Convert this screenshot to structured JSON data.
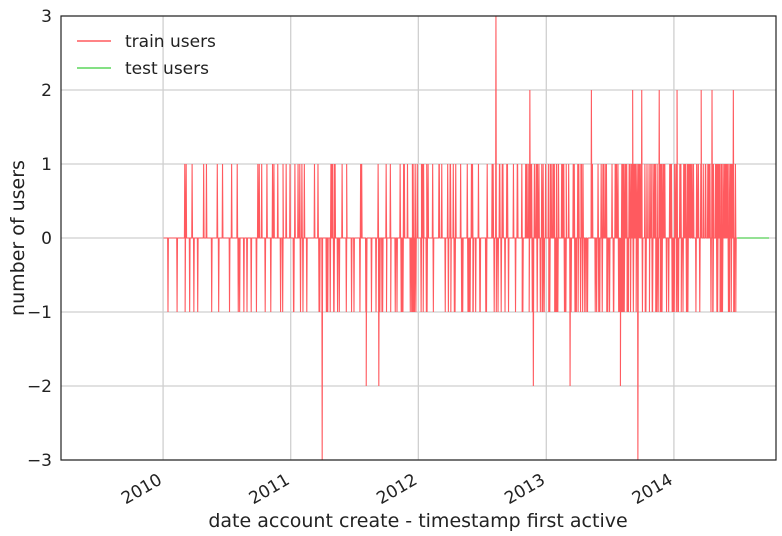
{
  "chart_data": {
    "type": "line",
    "xlabel": "date account create - timestamp first active",
    "ylabel": "number of users",
    "x_ticks": [
      "2010",
      "2011",
      "2012",
      "2013",
      "2014"
    ],
    "x_tick_dates": [
      "2010-01-01",
      "2011-01-01",
      "2012-01-01",
      "2013-01-01",
      "2014-01-01"
    ],
    "y_ticks": [
      3,
      2,
      1,
      0,
      -1,
      -2,
      -3
    ],
    "y_tick_labels": [
      "3",
      "2",
      "1",
      "0",
      "−1",
      "−2",
      "−3"
    ],
    "xlim": [
      "2009-03-15",
      "2014-10-20"
    ],
    "ylim": [
      -3,
      3
    ],
    "grid": true,
    "legend_position": "top-left",
    "series": [
      {
        "name": "train users",
        "color": "#ff5a5f",
        "x_start": "2010-01-02",
        "x_end": "2014-06-30",
        "note_density": "dense spiky series between -3 and 3",
        "spikes": [
          {
            "date": "2010-01-15",
            "value": -1
          },
          {
            "date": "2010-02-10",
            "value": -1
          },
          {
            "date": "2010-03-05",
            "value": -1
          },
          {
            "date": "2010-03-25",
            "value": 1
          },
          {
            "date": "2010-04-10",
            "value": -1
          },
          {
            "date": "2010-05-20",
            "value": -1
          },
          {
            "date": "2010-06-05",
            "value": 1
          },
          {
            "date": "2010-06-20",
            "value": 1
          },
          {
            "date": "2010-07-10",
            "value": -1
          },
          {
            "date": "2010-08-01",
            "value": 1
          },
          {
            "date": "2010-08-20",
            "value": -1
          },
          {
            "date": "2010-09-10",
            "value": -1
          },
          {
            "date": "2010-09-25",
            "value": -1
          },
          {
            "date": "2010-10-10",
            "value": 1
          },
          {
            "date": "2010-10-25",
            "value": 1
          },
          {
            "date": "2010-11-05",
            "value": -1
          },
          {
            "date": "2010-11-25",
            "value": 1
          },
          {
            "date": "2010-12-10",
            "value": 1
          },
          {
            "date": "2011-01-10",
            "value": -1
          },
          {
            "date": "2011-02-05",
            "value": -1
          },
          {
            "date": "2011-03-10",
            "value": 1
          },
          {
            "date": "2011-03-25",
            "value": -1
          },
          {
            "date": "2011-04-01",
            "value": -3
          },
          {
            "date": "2011-04-15",
            "value": -1
          },
          {
            "date": "2011-05-01",
            "value": 1
          },
          {
            "date": "2011-05-20",
            "value": -1
          },
          {
            "date": "2011-06-10",
            "value": 1
          },
          {
            "date": "2011-07-01",
            "value": -1
          },
          {
            "date": "2011-07-20",
            "value": 1
          },
          {
            "date": "2011-08-05",
            "value": -2
          },
          {
            "date": "2011-08-20",
            "value": -1
          },
          {
            "date": "2011-09-10",
            "value": -2
          },
          {
            "date": "2011-10-01",
            "value": 1
          },
          {
            "date": "2011-11-01",
            "value": -1
          },
          {
            "date": "2011-12-01",
            "value": 1
          },
          {
            "date": "2012-01-15",
            "value": -1
          },
          {
            "date": "2012-03-01",
            "value": 1
          },
          {
            "date": "2012-04-15",
            "value": -1
          },
          {
            "date": "2012-06-01",
            "value": 1
          },
          {
            "date": "2012-08-10",
            "value": 3
          },
          {
            "date": "2012-09-15",
            "value": -1
          },
          {
            "date": "2012-11-15",
            "value": 2
          },
          {
            "date": "2012-11-25",
            "value": -2
          },
          {
            "date": "2013-01-15",
            "value": 1
          },
          {
            "date": "2013-03-10",
            "value": -2
          },
          {
            "date": "2013-05-10",
            "value": 2
          },
          {
            "date": "2013-07-01",
            "value": -1
          },
          {
            "date": "2013-08-01",
            "value": -2
          },
          {
            "date": "2013-09-05",
            "value": 2
          },
          {
            "date": "2013-09-20",
            "value": -3
          },
          {
            "date": "2013-10-01",
            "value": 2
          },
          {
            "date": "2013-11-01",
            "value": -1
          },
          {
            "date": "2013-11-20",
            "value": 2
          },
          {
            "date": "2014-01-10",
            "value": 2
          },
          {
            "date": "2014-02-10",
            "value": -1
          },
          {
            "date": "2014-03-20",
            "value": 2
          },
          {
            "date": "2014-04-20",
            "value": 2
          },
          {
            "date": "2014-06-20",
            "value": 2
          }
        ]
      },
      {
        "name": "test users",
        "color": "#5cd65c",
        "x_start": "2014-07-01",
        "x_end": "2014-09-30",
        "constant_value": 0
      }
    ]
  }
}
